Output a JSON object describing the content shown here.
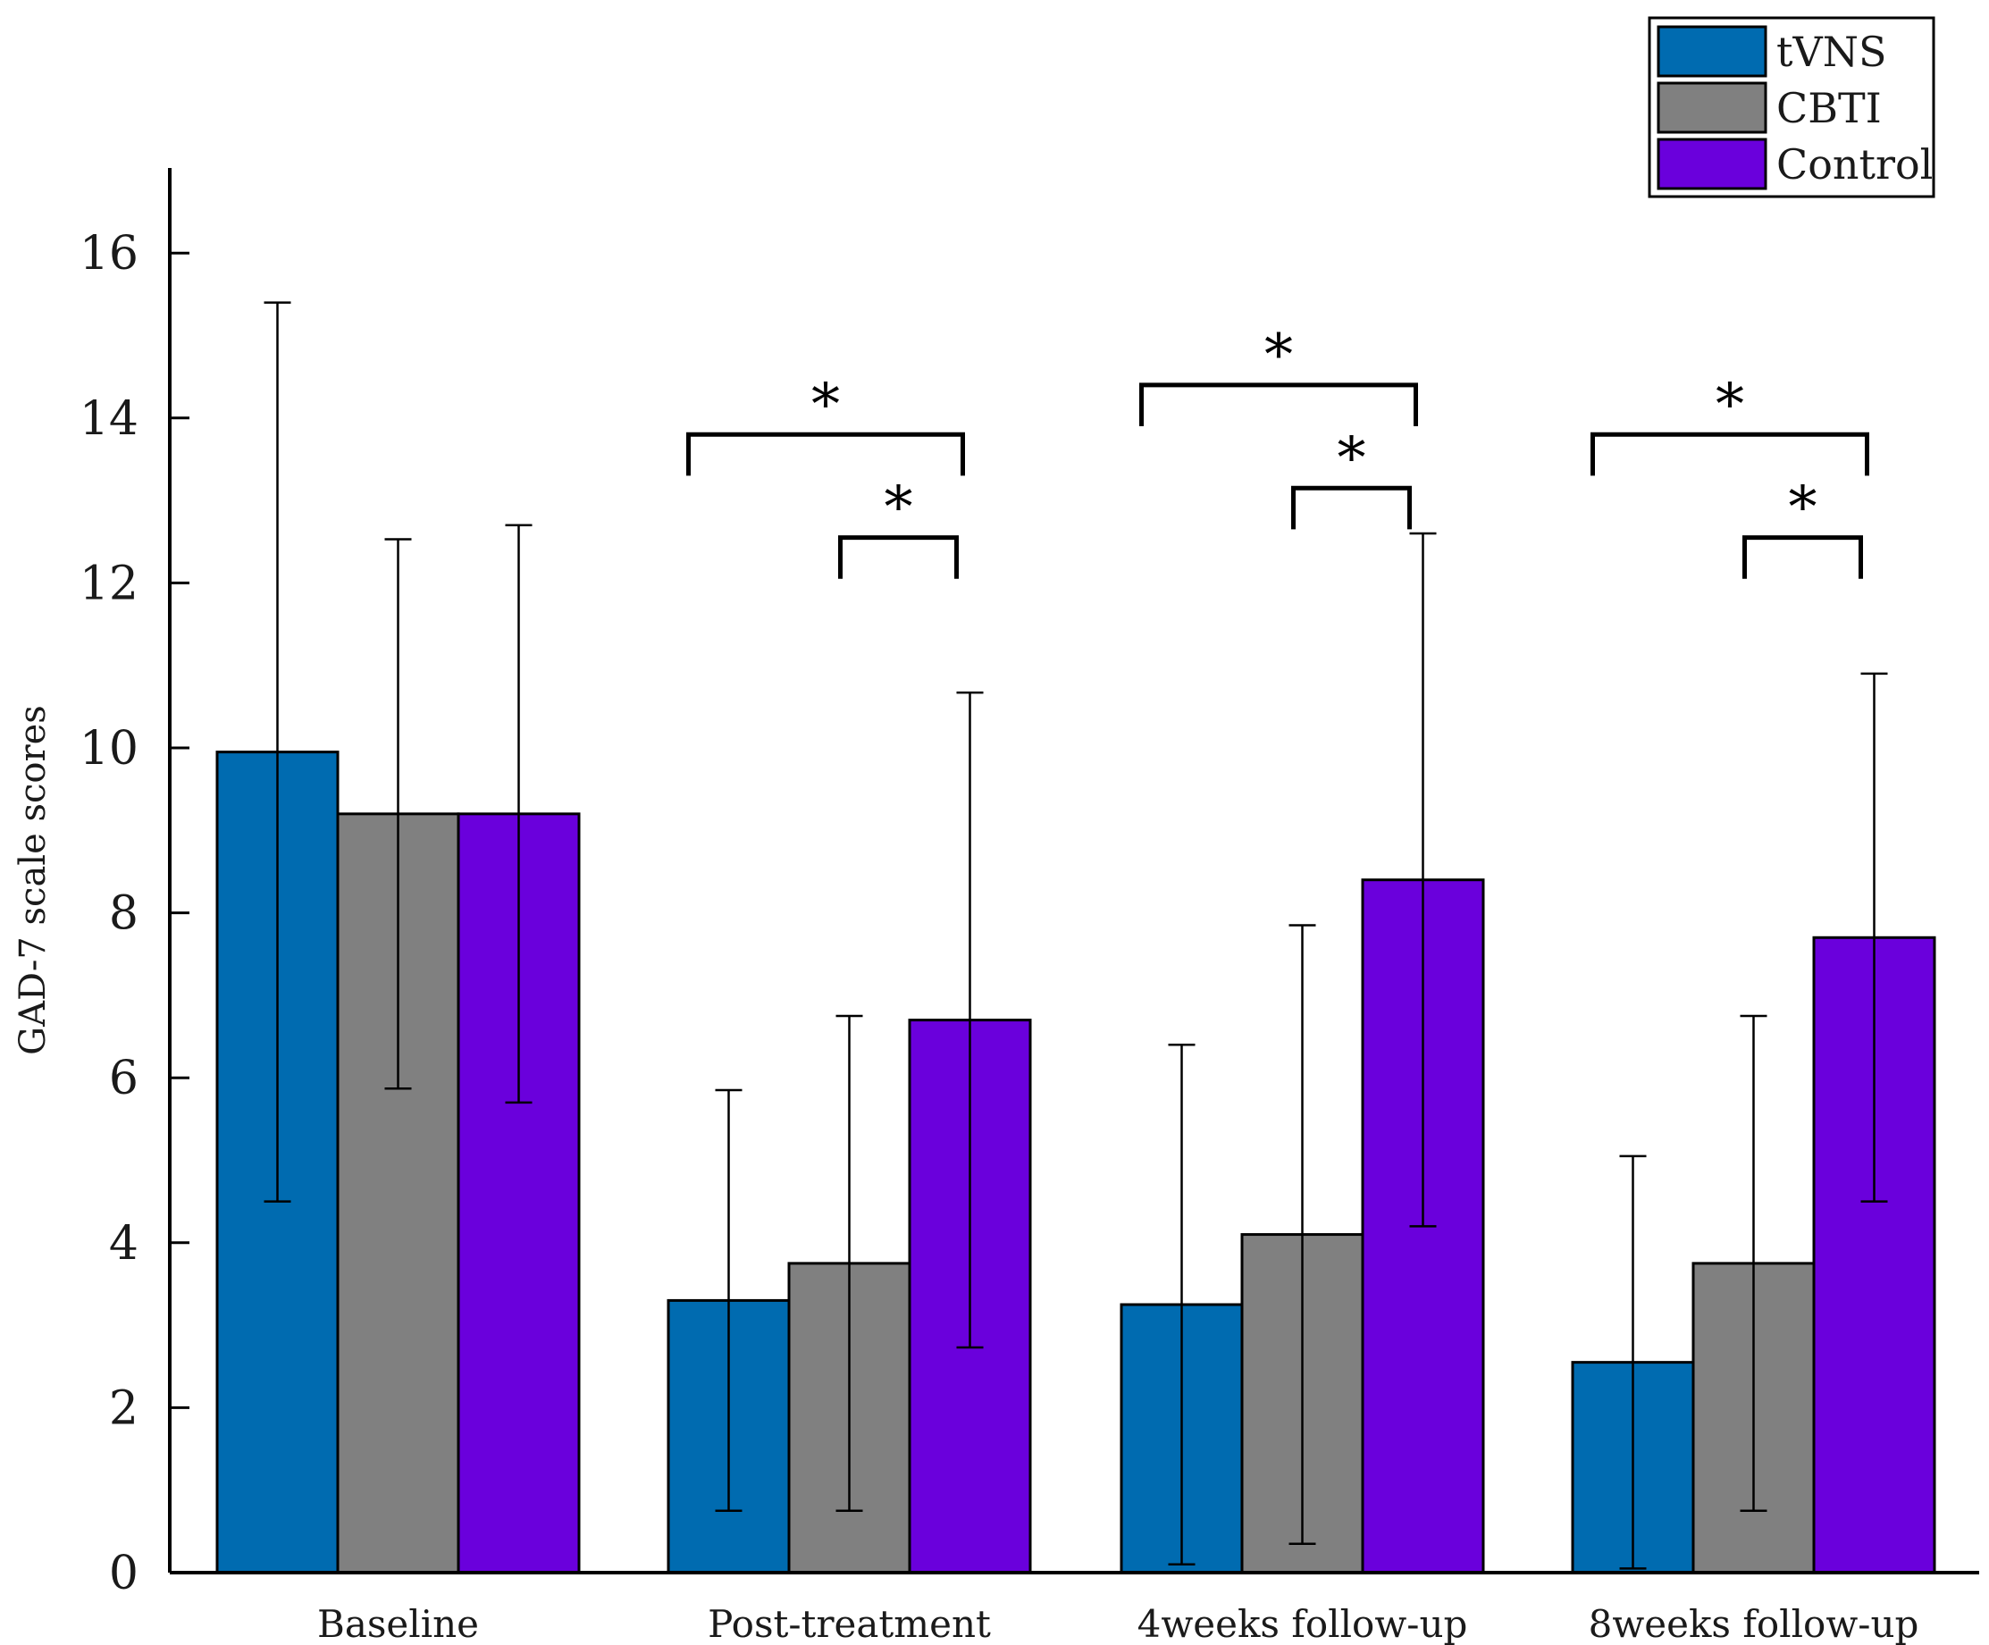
{
  "chart_data": {
    "type": "bar",
    "title": "",
    "xlabel": "",
    "ylabel": "GAD-7 scale scores",
    "ylim": [
      0,
      17
    ],
    "yticks": [
      0,
      2,
      4,
      6,
      8,
      10,
      12,
      14,
      16
    ],
    "ytick_labels": [
      "0",
      "2",
      "4",
      "6",
      "8",
      "10",
      "12",
      "14",
      "16"
    ],
    "grid": false,
    "legend_position": "top-right",
    "categories": [
      "Baseline",
      "Post-treatment",
      "4weeks follow-up",
      "8weeks follow-up"
    ],
    "series": [
      {
        "name": "tVNS",
        "color": "#006bb0",
        "values": [
          9.95,
          3.3,
          3.25,
          2.55
        ],
        "error": [
          5.45,
          2.55,
          3.15,
          2.5
        ]
      },
      {
        "name": "CBTI",
        "color": "#808080",
        "values": [
          9.2,
          3.75,
          4.1,
          3.75
        ],
        "error": [
          3.33,
          3.0,
          3.75,
          3.0
        ]
      },
      {
        "name": "Control",
        "color": "#6a00dc",
        "values": [
          9.2,
          6.7,
          8.4,
          7.7
        ],
        "error": [
          3.5,
          3.97,
          4.2,
          3.2
        ]
      }
    ],
    "significance": [
      {
        "category": 1,
        "from": "tVNS",
        "to": "Control",
        "label": "*"
      },
      {
        "category": 1,
        "from": "CBTI",
        "to": "Control",
        "label": "*"
      },
      {
        "category": 2,
        "from": "tVNS",
        "to": "Control",
        "label": "*"
      },
      {
        "category": 2,
        "from": "CBTI",
        "to": "Control",
        "label": "*"
      },
      {
        "category": 3,
        "from": "tVNS",
        "to": "Control",
        "label": "*"
      },
      {
        "category": 3,
        "from": "CBTI",
        "to": "Control",
        "label": "*"
      }
    ]
  }
}
